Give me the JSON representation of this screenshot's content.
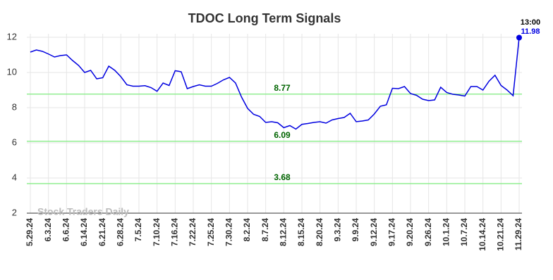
{
  "chart_data": {
    "type": "line",
    "title": "TDOC Long Term Signals",
    "categories": [
      "5.29.24",
      null,
      null,
      "6.3.24",
      null,
      null,
      "6.6.24",
      null,
      null,
      "6.14.24",
      null,
      null,
      "6.21.24",
      null,
      null,
      "6.28.24",
      null,
      null,
      "7.5.24",
      null,
      null,
      "7.10.24",
      null,
      null,
      "7.16.24",
      null,
      null,
      "7.22.24",
      null,
      null,
      "7.25.24",
      null,
      null,
      "7.30.24",
      null,
      null,
      "8.2.24",
      null,
      null,
      "8.7.24",
      null,
      null,
      "8.12.24",
      null,
      null,
      "8.15.24",
      null,
      null,
      "8.20.24",
      null,
      null,
      "9.3.24",
      null,
      null,
      "9.9.24",
      null,
      null,
      "9.12.24",
      null,
      null,
      "9.17.24",
      null,
      null,
      "9.20.24",
      null,
      null,
      "9.26.24",
      null,
      null,
      "10.1.24",
      null,
      null,
      "10.7.24",
      null,
      null,
      "10.14.24",
      null,
      null,
      "10.21.24",
      null,
      null,
      "11.29.24"
    ],
    "values": [
      11.16,
      11.28,
      11.2,
      11.05,
      10.88,
      10.96,
      11.0,
      10.68,
      10.4,
      10.0,
      10.12,
      9.64,
      9.7,
      10.36,
      10.12,
      9.76,
      9.3,
      9.22,
      9.22,
      9.25,
      9.14,
      8.93,
      9.4,
      9.26,
      10.1,
      10.04,
      9.08,
      9.2,
      9.3,
      9.22,
      9.22,
      9.38,
      9.58,
      9.72,
      9.4,
      8.6,
      7.96,
      7.62,
      7.5,
      7.16,
      7.2,
      7.14,
      6.86,
      6.98,
      6.78,
      7.05,
      7.1,
      7.16,
      7.2,
      7.12,
      7.3,
      7.38,
      7.44,
      7.68,
      7.2,
      7.24,
      7.3,
      7.64,
      8.08,
      8.16,
      9.1,
      9.08,
      9.2,
      8.8,
      8.7,
      8.48,
      8.4,
      8.44,
      9.16,
      8.86,
      8.76,
      8.72,
      8.66,
      9.2,
      9.2,
      9.0,
      9.5,
      9.84,
      9.26,
      9.0,
      8.68,
      11.98
    ],
    "color": "#0000e0",
    "hlines": [
      8.77,
      6.09,
      3.68
    ],
    "hline_color": "#90ee90",
    "hline_label_color": "#006400",
    "last_time": "13:00",
    "watermark": "Stock Traders Daily",
    "ylim": [
      2,
      12
    ],
    "yticks": [
      2,
      4,
      6,
      8,
      10,
      12
    ],
    "grid": true
  }
}
